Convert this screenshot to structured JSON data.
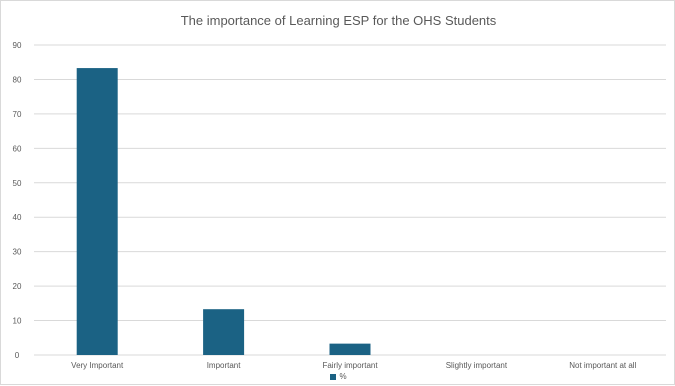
{
  "chart_data": {
    "type": "bar",
    "title": "The importance of Learning ESP for the OHS Students",
    "categories": [
      "Very Important",
      "Important",
      "Fairly important",
      "Slightly important",
      "Not important at all"
    ],
    "series": [
      {
        "name": "%",
        "values": [
          83.3,
          13.3,
          3.3,
          0,
          0
        ]
      }
    ],
    "ylim": [
      0,
      90
    ],
    "yticks": [
      0,
      10,
      20,
      30,
      40,
      50,
      60,
      70,
      80,
      90
    ],
    "xlabel": "",
    "ylabel": "",
    "grid": true,
    "legend_position": "bottom",
    "colors": {
      "bar": "#1b6284",
      "grid": "#d9d9d9",
      "text": "#595959"
    }
  }
}
